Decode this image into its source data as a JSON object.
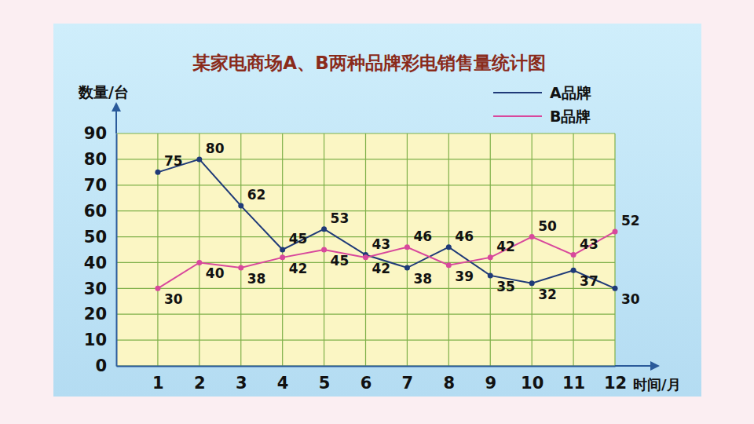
{
  "chart_data": {
    "type": "line",
    "title": "某家电商场A、B两种品牌彩电销售量统计图",
    "y_label": "数量/台",
    "x_label": "时间/月",
    "x": [
      1,
      2,
      3,
      4,
      5,
      6,
      7,
      8,
      9,
      10,
      11,
      12
    ],
    "xlim": [
      0,
      12
    ],
    "xticks": [
      1,
      2,
      3,
      4,
      5,
      6,
      7,
      8,
      9,
      10,
      11,
      12
    ],
    "ylim": [
      0,
      90
    ],
    "yticks": [
      0,
      10,
      20,
      30,
      40,
      50,
      60,
      70,
      80,
      90
    ],
    "grid": true,
    "legend": "top-right",
    "data_labels": true,
    "series": [
      {
        "name": "A品牌",
        "color": "#1f3a78",
        "marker": "circle",
        "line_style": "solid",
        "values": [
          75,
          80,
          62,
          45,
          53,
          43,
          38,
          46,
          35,
          32,
          37,
          30
        ]
      },
      {
        "name": "B品牌",
        "color": "#d8489c",
        "marker": "circle",
        "line_style": "solid",
        "values": [
          30,
          40,
          38,
          42,
          45,
          42,
          46,
          39,
          42,
          50,
          43,
          52
        ]
      }
    ]
  }
}
